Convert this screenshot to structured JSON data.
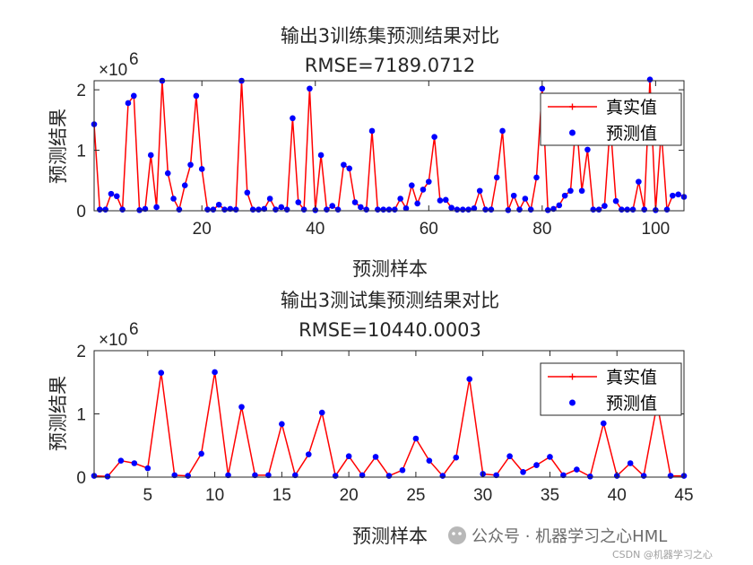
{
  "chart_data": [
    {
      "type": "line",
      "title": "输出3训练集预测结果对比",
      "subtitle": "RMSE=7189.0712",
      "xlabel": "预测样本",
      "ylabel": "预测结果",
      "y_exponent": "6",
      "xlim": [
        1,
        105
      ],
      "ylim": [
        0,
        2150000
      ],
      "xticks": [
        20,
        40,
        60,
        80,
        100
      ],
      "yticks": [
        0,
        1,
        2
      ],
      "legend": {
        "position": "top-right",
        "entries": [
          "真实值",
          "预测值"
        ]
      },
      "series": [
        {
          "name": "真实值",
          "color": "#ff0000",
          "marker": "plus",
          "values": [
            1430000,
            20000,
            20000,
            280000,
            240000,
            20000,
            1780000,
            1900000,
            10000,
            30000,
            920000,
            60000,
            2150000,
            620000,
            200000,
            20000,
            420000,
            760000,
            1900000,
            690000,
            20000,
            20000,
            100000,
            20000,
            30000,
            20000,
            2150000,
            300000,
            20000,
            20000,
            30000,
            200000,
            20000,
            60000,
            20000,
            1530000,
            140000,
            20000,
            2020000,
            10000,
            920000,
            20000,
            80000,
            20000,
            760000,
            700000,
            140000,
            60000,
            20000,
            1320000,
            20000,
            20000,
            20000,
            20000,
            200000,
            40000,
            420000,
            120000,
            350000,
            480000,
            1220000,
            170000,
            180000,
            50000,
            20000,
            20000,
            20000,
            40000,
            330000,
            20000,
            20000,
            550000,
            1320000,
            10000,
            250000,
            20000,
            200000,
            20000,
            550000,
            2020000,
            10000,
            30000,
            90000,
            250000,
            330000,
            1520000,
            330000,
            1010000,
            20000,
            20000,
            80000,
            1450000,
            160000,
            20000,
            20000,
            20000,
            480000,
            20000,
            2170000,
            10000,
            1320000,
            20000,
            250000,
            270000,
            230000
          ]
        },
        {
          "name": "预测值",
          "color": "#0000ff",
          "marker": "dot",
          "values": [
            1430000,
            20000,
            20000,
            280000,
            240000,
            20000,
            1780000,
            1900000,
            10000,
            30000,
            920000,
            60000,
            2150000,
            620000,
            200000,
            20000,
            420000,
            760000,
            1900000,
            690000,
            20000,
            20000,
            100000,
            20000,
            30000,
            20000,
            2150000,
            300000,
            20000,
            20000,
            30000,
            200000,
            20000,
            60000,
            20000,
            1530000,
            140000,
            20000,
            2020000,
            10000,
            920000,
            20000,
            80000,
            20000,
            760000,
            700000,
            140000,
            60000,
            20000,
            1320000,
            20000,
            20000,
            20000,
            20000,
            200000,
            40000,
            420000,
            120000,
            350000,
            480000,
            1220000,
            170000,
            180000,
            50000,
            20000,
            20000,
            20000,
            40000,
            330000,
            20000,
            20000,
            550000,
            1320000,
            10000,
            250000,
            20000,
            200000,
            20000,
            550000,
            2020000,
            10000,
            30000,
            90000,
            250000,
            330000,
            1520000,
            330000,
            1010000,
            20000,
            20000,
            80000,
            1450000,
            160000,
            20000,
            20000,
            20000,
            480000,
            20000,
            2170000,
            10000,
            1320000,
            20000,
            250000,
            270000,
            230000
          ]
        }
      ]
    },
    {
      "type": "line",
      "title": "输出3测试集预测结果对比",
      "subtitle": "RMSE=10440.0003",
      "xlabel": "预测样本",
      "ylabel": "预测结果",
      "y_exponent": "6",
      "xlim": [
        1,
        45
      ],
      "ylim": [
        0,
        2000000
      ],
      "xticks": [
        5,
        10,
        15,
        20,
        25,
        30,
        35,
        40,
        45
      ],
      "yticks": [
        0,
        1,
        2
      ],
      "legend": {
        "position": "top-right",
        "entries": [
          "真实值",
          "预测值"
        ]
      },
      "series": [
        {
          "name": "真实值",
          "color": "#ff0000",
          "marker": "plus",
          "values": [
            20000,
            10000,
            260000,
            220000,
            140000,
            1650000,
            30000,
            20000,
            370000,
            1660000,
            30000,
            1110000,
            30000,
            30000,
            840000,
            30000,
            360000,
            1020000,
            20000,
            330000,
            30000,
            320000,
            20000,
            110000,
            610000,
            260000,
            20000,
            310000,
            1550000,
            50000,
            30000,
            330000,
            80000,
            190000,
            320000,
            30000,
            120000,
            10000,
            850000,
            20000,
            220000,
            20000,
            1160000,
            20000,
            20000
          ]
        },
        {
          "name": "预测值",
          "color": "#0000ff",
          "marker": "dot",
          "values": [
            20000,
            10000,
            260000,
            220000,
            140000,
            1650000,
            30000,
            20000,
            370000,
            1660000,
            30000,
            1110000,
            30000,
            30000,
            840000,
            30000,
            360000,
            1020000,
            20000,
            330000,
            30000,
            320000,
            20000,
            110000,
            610000,
            260000,
            20000,
            310000,
            1550000,
            50000,
            30000,
            330000,
            80000,
            190000,
            320000,
            30000,
            120000,
            10000,
            850000,
            20000,
            220000,
            20000,
            1160000,
            20000,
            20000
          ]
        }
      ]
    }
  ],
  "watermark": {
    "text": "公众号 · 机器学习之心HML",
    "csdn": "CSDN @机器学习之心"
  }
}
